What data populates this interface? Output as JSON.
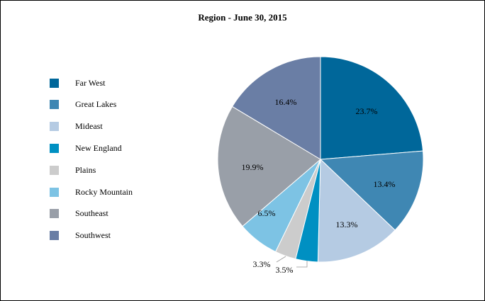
{
  "chart_data": {
    "type": "pie",
    "title": "Region - June 30, 2015",
    "legend_position": "left",
    "categories": [
      "Far West",
      "Great Lakes",
      "Mideast",
      "New England",
      "Plains",
      "Rocky Mountain",
      "Southeast",
      "Southwest"
    ],
    "values": [
      23.7,
      13.4,
      13.3,
      3.5,
      3.3,
      6.5,
      19.9,
      16.4
    ],
    "labels": [
      "23.7%",
      "13.4%",
      "13.3%",
      "3.5%",
      "3.3%",
      "6.5%",
      "19.9%",
      "16.4%"
    ],
    "colors": [
      "#00679a",
      "#3f87b3",
      "#b5cbe3",
      "#0090c2",
      "#cccccc",
      "#7dc3e4",
      "#999fa8",
      "#6a7ea5"
    ],
    "start_angle_deg": 0,
    "direction": "clockwise"
  }
}
